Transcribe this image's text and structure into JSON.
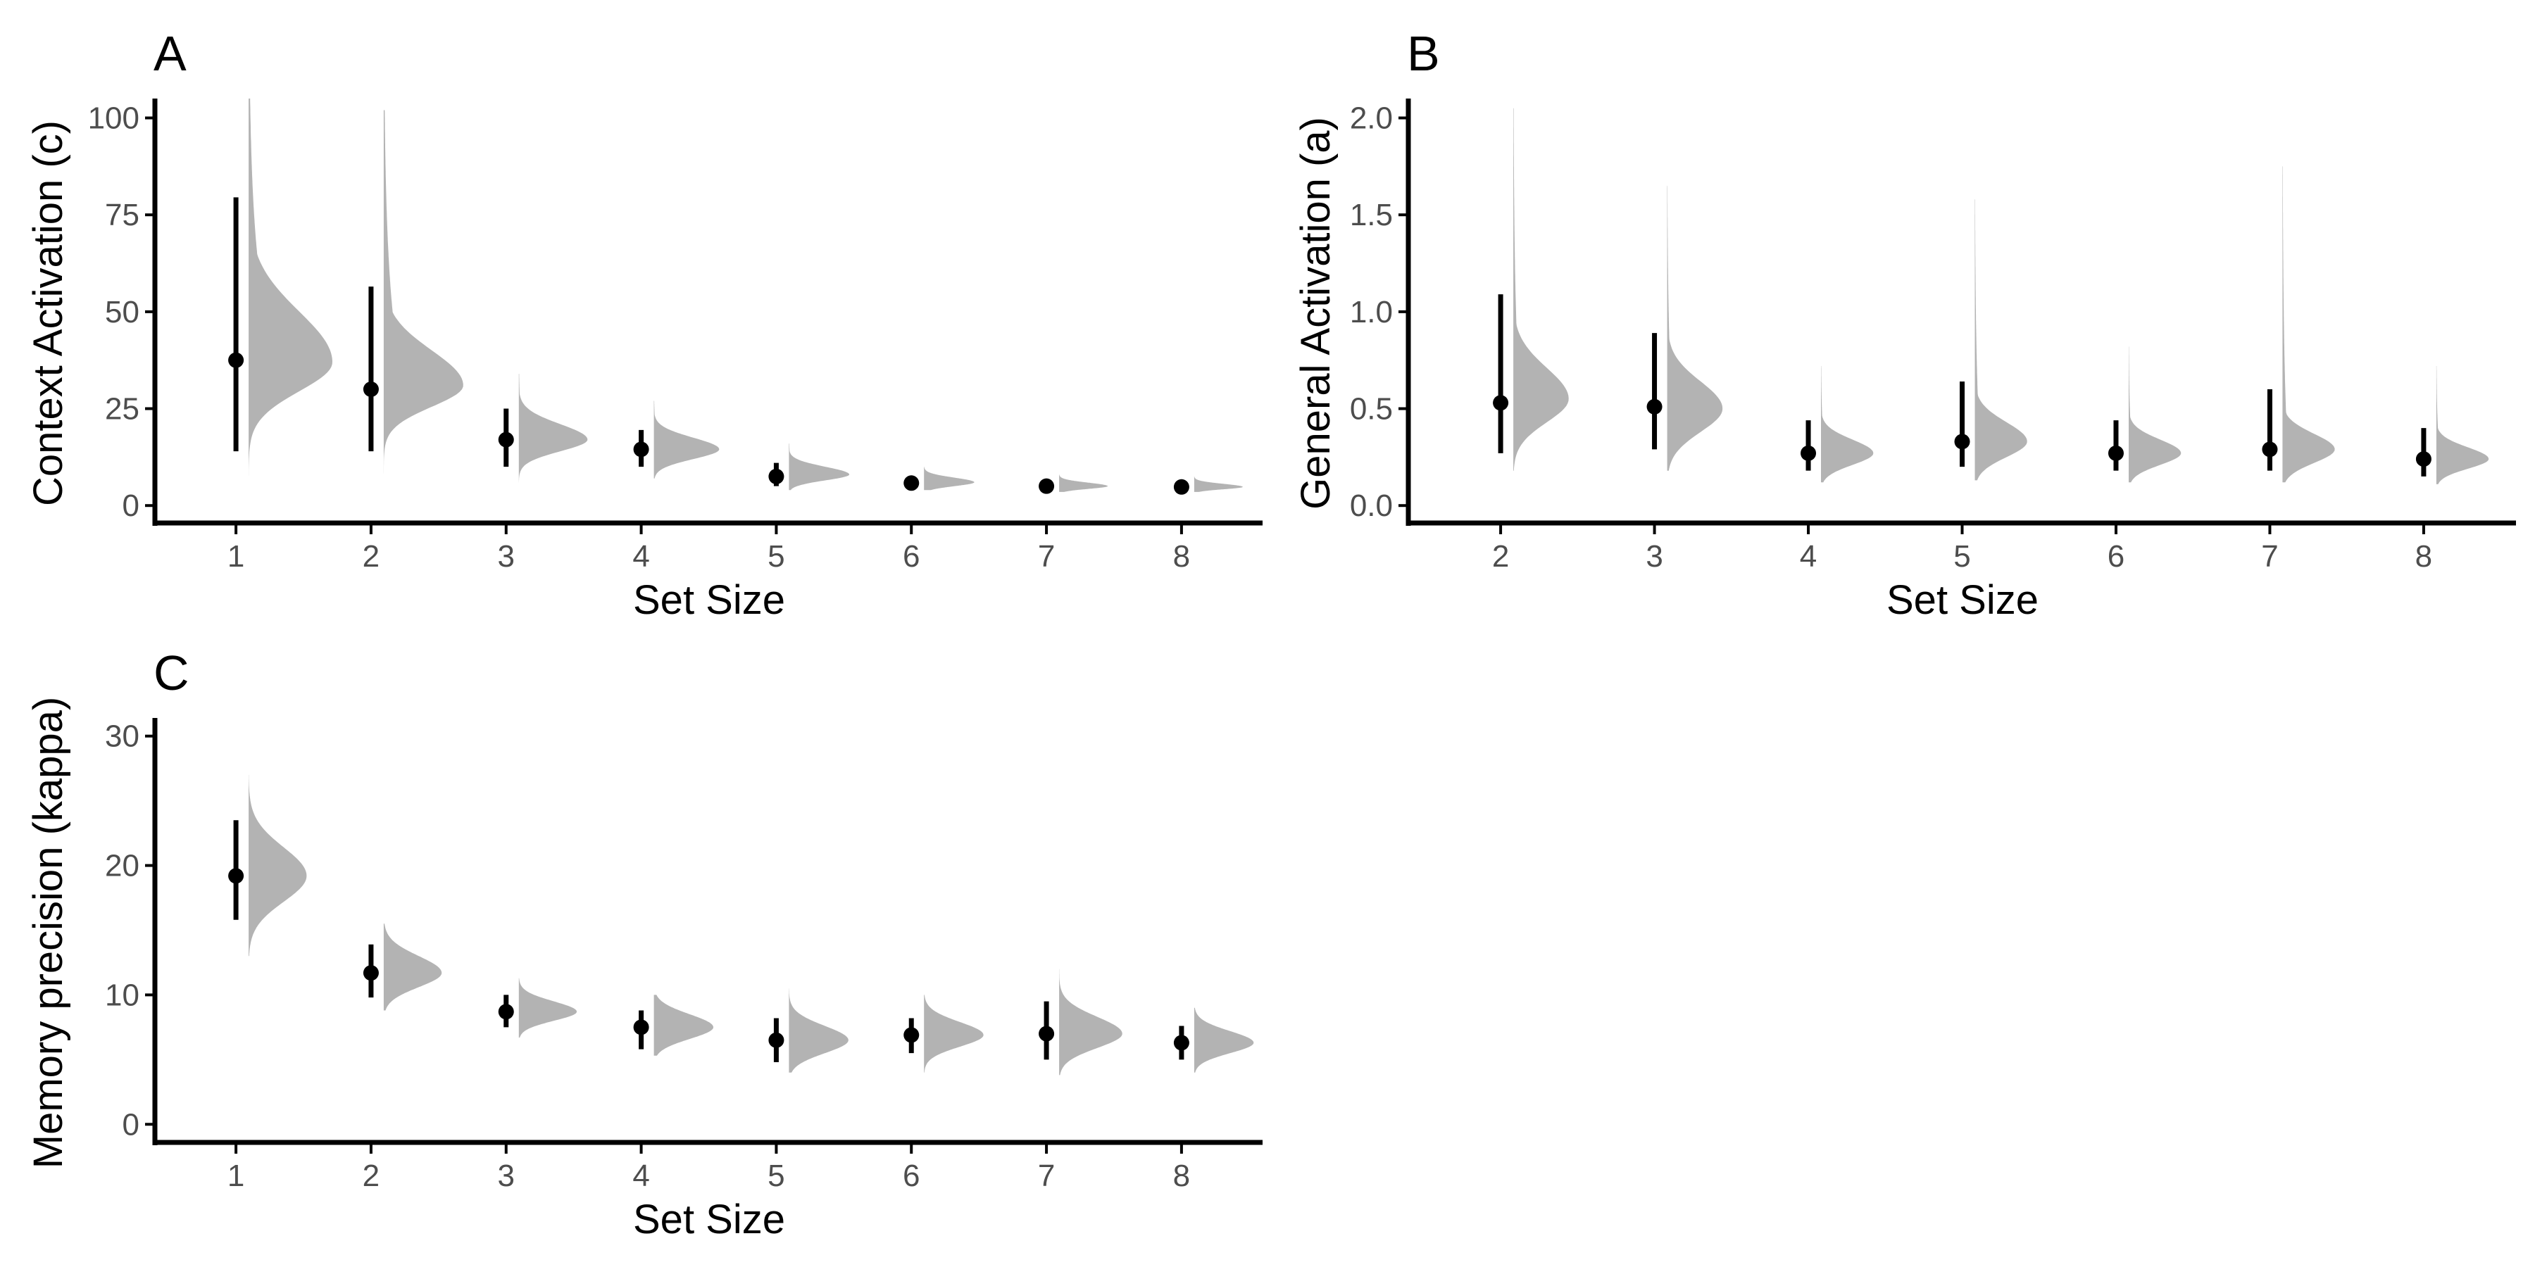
{
  "chart_data": [
    {
      "type": "raincloud",
      "panel": "A",
      "xlabel": "Set Size",
      "ylabel": "Context Activation (c)",
      "categories": [
        "1",
        "2",
        "3",
        "4",
        "5",
        "6",
        "7",
        "8"
      ],
      "yticks": [
        0,
        25,
        50,
        75,
        100
      ],
      "yticklabels": [
        "0",
        "25",
        "50",
        "75",
        "100"
      ],
      "ylim": [
        -4.5,
        105
      ],
      "density_scale": 0.62,
      "grid": false,
      "legend": "none",
      "estimates": [
        {
          "x": "1",
          "point": 37.5,
          "lower": 14.0,
          "upper": 79.5,
          "dist": {
            "min": 3.0,
            "max": 105.0,
            "mode": 37.0,
            "sdlo": 7.5,
            "sdhi": 13.0,
            "tail": 0.35,
            "width": 1.0
          }
        },
        {
          "x": "2",
          "point": 30.0,
          "lower": 14.0,
          "upper": 56.5,
          "dist": {
            "min": 6.0,
            "max": 102.0,
            "mode": 31.0,
            "sdlo": 5.5,
            "sdhi": 9.0,
            "tail": 0.25,
            "width": 0.95
          }
        },
        {
          "x": "3",
          "point": 17.0,
          "lower": 10.0,
          "upper": 25.0,
          "dist": {
            "min": 6.0,
            "max": 34.0,
            "mode": 17.0,
            "sdlo": 3.0,
            "sdhi": 4.0,
            "tail": 0.1,
            "width": 0.82
          }
        },
        {
          "x": "4",
          "point": 14.5,
          "lower": 10.0,
          "upper": 19.5,
          "dist": {
            "min": 7.0,
            "max": 27.0,
            "mode": 14.5,
            "sdlo": 2.5,
            "sdhi": 3.0,
            "tail": 0.1,
            "width": 0.78
          }
        },
        {
          "x": "5",
          "point": 7.5,
          "lower": 5.0,
          "upper": 11.0,
          "dist": {
            "min": 4.0,
            "max": 16.0,
            "mode": 8.0,
            "sdlo": 1.5,
            "sdhi": 2.0,
            "tail": 0.1,
            "width": 0.72
          }
        },
        {
          "x": "6",
          "point": 5.8,
          "lower": 4.8,
          "upper": 7.0,
          "dist": {
            "min": 4.0,
            "max": 10.0,
            "mode": 6.0,
            "sdlo": 1.0,
            "sdhi": 1.2,
            "tail": 0.05,
            "width": 0.6
          }
        },
        {
          "x": "7",
          "point": 5.0,
          "lower": 4.3,
          "upper": 5.8,
          "dist": {
            "min": 3.5,
            "max": 8.0,
            "mode": 5.0,
            "sdlo": 0.7,
            "sdhi": 0.9,
            "tail": 0.05,
            "width": 0.58
          }
        },
        {
          "x": "8",
          "point": 4.8,
          "lower": 4.3,
          "upper": 5.5,
          "dist": {
            "min": 3.5,
            "max": 7.5,
            "mode": 4.8,
            "sdlo": 0.6,
            "sdhi": 0.8,
            "tail": 0.05,
            "width": 0.58
          }
        }
      ]
    },
    {
      "type": "raincloud",
      "panel": "B",
      "xlabel": "Set Size",
      "ylabel": "General Activation (a)",
      "categories": [
        "2",
        "3",
        "4",
        "5",
        "6",
        "7",
        "8"
      ],
      "yticks": [
        0.0,
        0.5,
        1.0,
        1.5,
        2.0
      ],
      "yticklabels": [
        "0.0",
        "0.5",
        "1.0",
        "1.5",
        "2.0"
      ],
      "ylim": [
        -0.09,
        2.1
      ],
      "density_scale": 0.4,
      "grid": false,
      "legend": "none",
      "estimates": [
        {
          "x": "2",
          "point": 0.53,
          "lower": 0.27,
          "upper": 1.09,
          "dist": {
            "min": 0.18,
            "max": 2.05,
            "mode": 0.55,
            "sdlo": 0.12,
            "sdhi": 0.16,
            "tail": 0.12,
            "width": 0.9
          }
        },
        {
          "x": "3",
          "point": 0.51,
          "lower": 0.29,
          "upper": 0.89,
          "dist": {
            "min": 0.18,
            "max": 1.65,
            "mode": 0.5,
            "sdlo": 0.12,
            "sdhi": 0.14,
            "tail": 0.1,
            "width": 0.9
          }
        },
        {
          "x": "4",
          "point": 0.27,
          "lower": 0.18,
          "upper": 0.44,
          "dist": {
            "min": 0.12,
            "max": 0.72,
            "mode": 0.27,
            "sdlo": 0.06,
            "sdhi": 0.07,
            "tail": 0.08,
            "width": 0.85
          }
        },
        {
          "x": "5",
          "point": 0.33,
          "lower": 0.2,
          "upper": 0.64,
          "dist": {
            "min": 0.13,
            "max": 1.58,
            "mode": 0.33,
            "sdlo": 0.08,
            "sdhi": 0.1,
            "tail": 0.1,
            "width": 0.85
          }
        },
        {
          "x": "6",
          "point": 0.27,
          "lower": 0.18,
          "upper": 0.44,
          "dist": {
            "min": 0.12,
            "max": 0.82,
            "mode": 0.27,
            "sdlo": 0.06,
            "sdhi": 0.07,
            "tail": 0.08,
            "width": 0.85
          }
        },
        {
          "x": "7",
          "point": 0.29,
          "lower": 0.18,
          "upper": 0.6,
          "dist": {
            "min": 0.12,
            "max": 1.75,
            "mode": 0.29,
            "sdlo": 0.07,
            "sdhi": 0.08,
            "tail": 0.1,
            "width": 0.85
          }
        },
        {
          "x": "8",
          "point": 0.24,
          "lower": 0.15,
          "upper": 0.4,
          "dist": {
            "min": 0.11,
            "max": 0.72,
            "mode": 0.24,
            "sdlo": 0.05,
            "sdhi": 0.06,
            "tail": 0.08,
            "width": 0.85
          }
        }
      ]
    },
    {
      "type": "raincloud",
      "panel": "C",
      "xlabel": "Set Size",
      "ylabel": "Memory precision (kappa)",
      "categories": [
        "1",
        "2",
        "3",
        "4",
        "5",
        "6",
        "7",
        "8"
      ],
      "yticks": [
        0,
        10,
        20,
        30
      ],
      "yticklabels": [
        "0",
        "10",
        "20",
        "30"
      ],
      "ylim": [
        -1.4,
        31.4
      ],
      "density_scale": 0.55,
      "grid": false,
      "legend": "none",
      "estimates": [
        {
          "x": "1",
          "point": 19.2,
          "lower": 15.8,
          "upper": 23.5,
          "dist": {
            "min": 13.0,
            "max": 27.0,
            "mode": 19.2,
            "sdlo": 2.0,
            "sdhi": 2.2,
            "tail": 0.05,
            "width": 0.78
          }
        },
        {
          "x": "2",
          "point": 11.7,
          "lower": 9.8,
          "upper": 13.9,
          "dist": {
            "min": 8.8,
            "max": 15.5,
            "mode": 11.7,
            "sdlo": 1.1,
            "sdhi": 1.3,
            "tail": 0.05,
            "width": 0.78
          }
        },
        {
          "x": "3",
          "point": 8.7,
          "lower": 7.5,
          "upper": 10.0,
          "dist": {
            "min": 6.7,
            "max": 11.3,
            "mode": 8.7,
            "sdlo": 0.7,
            "sdhi": 0.8,
            "tail": 0.05,
            "width": 0.78
          }
        },
        {
          "x": "4",
          "point": 7.5,
          "lower": 5.8,
          "upper": 8.8,
          "dist": {
            "min": 5.3,
            "max": 10.0,
            "mode": 7.5,
            "sdlo": 0.9,
            "sdhi": 1.0,
            "tail": 0.05,
            "width": 0.8
          }
        },
        {
          "x": "5",
          "point": 6.5,
          "lower": 4.8,
          "upper": 8.2,
          "dist": {
            "min": 4.0,
            "max": 10.5,
            "mode": 6.5,
            "sdlo": 1.0,
            "sdhi": 1.1,
            "tail": 0.05,
            "width": 0.8
          }
        },
        {
          "x": "6",
          "point": 6.9,
          "lower": 5.5,
          "upper": 8.2,
          "dist": {
            "min": 4.0,
            "max": 10.0,
            "mode": 6.9,
            "sdlo": 0.9,
            "sdhi": 1.0,
            "tail": 0.05,
            "width": 0.8
          }
        },
        {
          "x": "7",
          "point": 7.0,
          "lower": 5.0,
          "upper": 9.5,
          "dist": {
            "min": 3.8,
            "max": 12.0,
            "mode": 7.0,
            "sdlo": 1.1,
            "sdhi": 1.3,
            "tail": 0.05,
            "width": 0.85
          }
        },
        {
          "x": "8",
          "point": 6.3,
          "lower": 5.0,
          "upper": 7.6,
          "dist": {
            "min": 4.0,
            "max": 9.0,
            "mode": 6.3,
            "sdlo": 0.8,
            "sdhi": 0.9,
            "tail": 0.05,
            "width": 0.8
          }
        }
      ]
    }
  ],
  "colors": {
    "density": "#b3b3b3",
    "point": "#000000",
    "interval": "#000000",
    "axis": "#000000",
    "tick_label": "#4d4d4d",
    "text": "#000000"
  }
}
